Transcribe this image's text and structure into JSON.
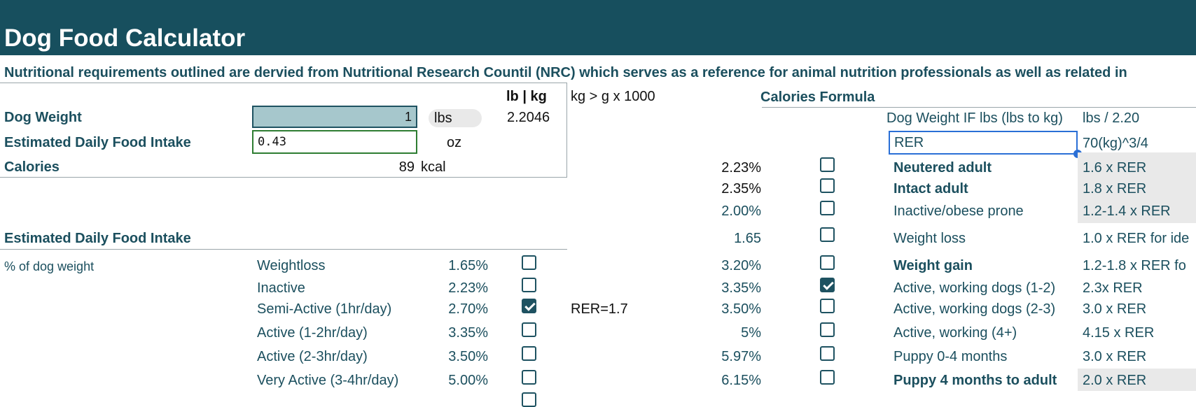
{
  "header": {
    "title": "Dog Food Calculator"
  },
  "subtitle": "Nutritional requirements outlined are dervied from Nutritional Research Countil (NRC) which serves as a reference for animal nutrition professionals as well as related in",
  "calc": {
    "dog_weight_label": "Dog Weight",
    "dog_weight_value": "1",
    "unit": "lbs",
    "lb_kg_header": "lb | kg",
    "lb_kg_value": "2.2046",
    "kg_note": "kg > g x 1000",
    "intake_label": "Estimated Daily Food Intake",
    "intake_value": "0.43",
    "intake_unit": "oz",
    "calories_label": "Calories",
    "calories_value": "89",
    "calories_unit": "kcal"
  },
  "intake_section": {
    "title": "Estimated Daily Food Intake",
    "pct_label": "% of dog weight",
    "rer_note": "RER=1.7",
    "rows": [
      {
        "label": "Weightloss",
        "pct": "1.65%",
        "checked": false
      },
      {
        "label": "Inactive",
        "pct": "2.23%",
        "checked": false
      },
      {
        "label": "Semi-Active (1hr/day)",
        "pct": "2.70%",
        "checked": true
      },
      {
        "label": "Active (1-2hr/day)",
        "pct": "3.35%",
        "checked": false
      },
      {
        "label": "Active (2-3hr/day)",
        "pct": "3.50%",
        "checked": false
      },
      {
        "label": "Very Active (3-4hr/day)",
        "pct": "5.00%",
        "checked": false
      }
    ]
  },
  "formula": {
    "title": "Calories Formula",
    "weight_if_label": "Dog Weight IF lbs (lbs to kg)",
    "weight_if_value": "lbs / 2.20",
    "rer_label": "RER",
    "rer_value": "70(kg)^3/4",
    "rows": [
      {
        "pct": "2.23%",
        "checked": false,
        "label": "Neutered adult",
        "formula": "1.6 x RER",
        "bold": true
      },
      {
        "pct": "2.35%",
        "checked": false,
        "label": "Intact adult",
        "formula": "1.8 x RER",
        "bold": true
      },
      {
        "pct": "2.00%",
        "checked": false,
        "label": "Inactive/obese prone",
        "formula": "1.2-1.4 x RER",
        "bold": false
      },
      {
        "pct": "1.65",
        "checked": false,
        "label": "Weight loss",
        "formula": "1.0 x RER for ide",
        "bold": false
      },
      {
        "pct": "3.20%",
        "checked": false,
        "label": "Weight gain",
        "formula": "1.2-1.8 x RER fo",
        "bold": true
      },
      {
        "pct": "3.35%",
        "checked": true,
        "label": "Active, working dogs (1-2)",
        "formula": "2.3x RER",
        "bold": false
      },
      {
        "pct": "3.50%",
        "checked": false,
        "label": "Active, working dogs (2-3)",
        "formula": "3.0 x RER",
        "bold": false
      },
      {
        "pct": "5%",
        "checked": false,
        "label": "Active, working (4+)",
        "formula": "4.15 x RER",
        "bold": false
      },
      {
        "pct": "5.97%",
        "checked": false,
        "label": "Puppy 0-4 months",
        "formula": "3.0 x RER",
        "bold": false
      },
      {
        "pct": "6.15%",
        "checked": false,
        "label": "Puppy 4 months to adult",
        "formula": "2.0 x RER",
        "bold": true
      }
    ]
  }
}
